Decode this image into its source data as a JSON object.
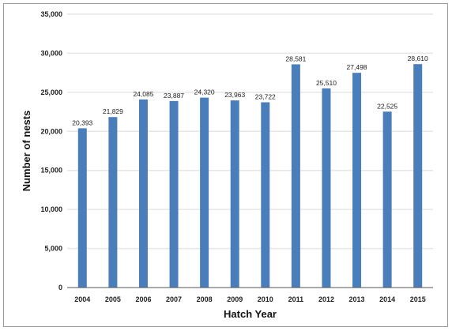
{
  "chart_data": {
    "type": "bar",
    "categories": [
      "2004",
      "2005",
      "2006",
      "2007",
      "2008",
      "2009",
      "2010",
      "2011",
      "2012",
      "2013",
      "2014",
      "2015"
    ],
    "values": [
      20393,
      21829,
      24085,
      23887,
      24320,
      23963,
      23722,
      28581,
      25510,
      27498,
      22525,
      28610
    ],
    "value_labels": [
      "20,393",
      "21,829",
      "24,085",
      "23,887",
      "24,320",
      "23,963",
      "23,722",
      "28,581",
      "25,510",
      "27,498",
      "22,525",
      "28,610"
    ],
    "title": "",
    "xlabel": "Hatch Year",
    "ylabel": "Number of nests",
    "ylim": [
      0,
      35000
    ],
    "yticks": [
      0,
      5000,
      10000,
      15000,
      20000,
      25000,
      30000,
      35000
    ],
    "ytick_labels": [
      "0",
      "5,000",
      "10,000",
      "15,000",
      "20,000",
      "25,000",
      "30,000",
      "35,000"
    ],
    "grid": true,
    "bar_color": "#4a7ebb"
  }
}
